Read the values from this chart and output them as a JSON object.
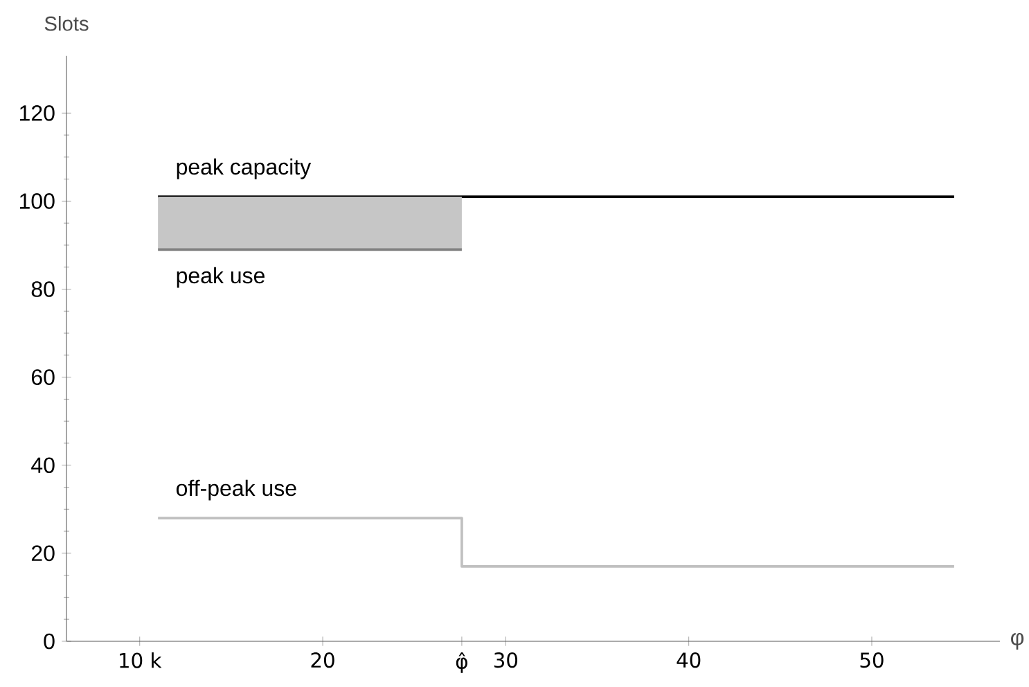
{
  "chart_data": {
    "type": "line",
    "ylabel": "Slots",
    "xlabel": "φ",
    "xlim": [
      6,
      57
    ],
    "ylim": [
      0,
      133
    ],
    "xticks": [
      {
        "value": 10,
        "label": "10 k"
      },
      20,
      {
        "value": 27.6,
        "label": "φ̂"
      },
      30,
      40,
      50
    ],
    "yticks": [
      0,
      20,
      40,
      60,
      80,
      100,
      120
    ],
    "grid": false,
    "legend": false,
    "marker": "none",
    "line_style": "solid",
    "series": [
      {
        "name": "peak capacity",
        "color": "#000000",
        "x": [
          11,
          54.5
        ],
        "values": [
          101,
          101
        ]
      },
      {
        "name": "peak use",
        "color": "#808080",
        "x": [
          11,
          27.6
        ],
        "values": [
          89,
          89
        ],
        "lower": [
          89,
          89
        ],
        "upper": [
          101,
          101
        ]
      },
      {
        "name": "off-peak use",
        "color": "#c0c0c0",
        "type": "step",
        "x": [
          11,
          27.6,
          54.5
        ],
        "values": [
          28,
          17,
          17
        ]
      }
    ]
  }
}
